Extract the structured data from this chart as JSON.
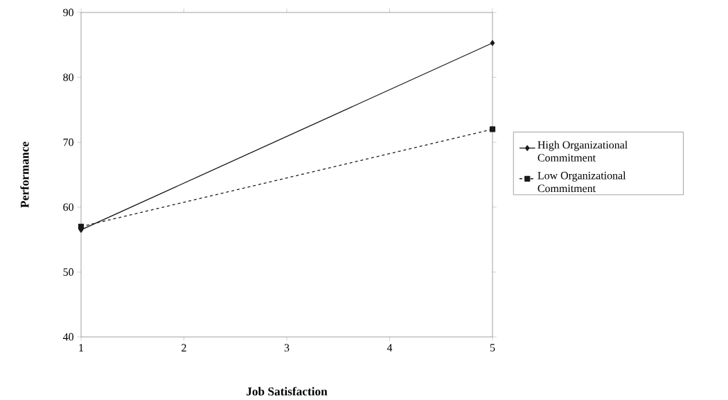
{
  "chart_data": {
    "type": "line",
    "xlabel": "Job Satisfaction",
    "ylabel": "Performance",
    "x": [
      1,
      5
    ],
    "series": [
      {
        "name": "High Organizational Commitment",
        "color": "#1a1a1a",
        "values": [
          56.5,
          85.3
        ],
        "marker": "diamond",
        "line_style": "solid"
      },
      {
        "name": "Low Organizational Commitment",
        "color": "#1a1a1a",
        "values": [
          57,
          72
        ],
        "marker": "square",
        "line_style": "dashed"
      }
    ],
    "xlim": [
      1,
      5
    ],
    "xticks": [
      1,
      2,
      3,
      4,
      5
    ],
    "ylim": [
      40,
      90
    ],
    "yticks": [
      40,
      50,
      60,
      70,
      80,
      90
    ],
    "grid": false,
    "legend": "right"
  }
}
